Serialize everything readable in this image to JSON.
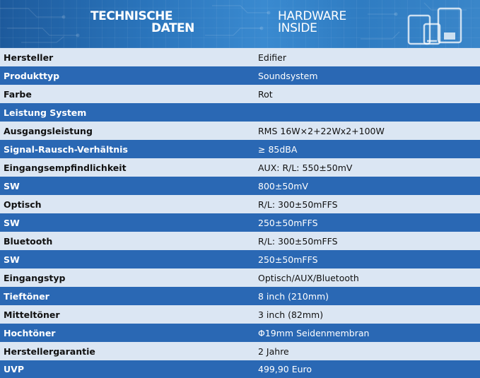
{
  "header": {
    "title_left_line1": "TECHNISCHE",
    "title_left_line2": "DATEN",
    "title_right_line1": "HARDWARE",
    "title_right_line2": "INSIDE",
    "icon": "devices-icon"
  },
  "colors": {
    "banner": "#2a74bb",
    "row_light": "#dbe6f3",
    "row_dark": "#2a68b4"
  },
  "specs": [
    {
      "label": "Hersteller",
      "value": "Edifier"
    },
    {
      "label": "Produkttyp",
      "value": "Soundsystem"
    },
    {
      "label": "Farbe",
      "value": "Rot"
    },
    {
      "label": "Leistung System",
      "value": ""
    },
    {
      "label": "Ausgangsleistung",
      "value": "RMS 16W×2+22Wx2+100W"
    },
    {
      "label": "Signal-Rausch-Verhältnis",
      "value": "≥ 85dBA"
    },
    {
      "label": "Eingangsempfindlichkeit",
      "value": "AUX: R/L: 550±50mV"
    },
    {
      "label": "SW",
      "value": "800±50mV"
    },
    {
      "label": "Optisch",
      "value": "R/L: 300±50mFFS"
    },
    {
      "label": "SW",
      "value": "250±50mFFS"
    },
    {
      "label": "Bluetooth",
      "value": "R/L: 300±50mFFS"
    },
    {
      "label": "SW",
      "value": "250±50mFFS"
    },
    {
      "label": "Eingangstyp",
      "value": "Optisch/AUX/Bluetooth"
    },
    {
      "label": "Tieftöner",
      "value": "8 inch (210mm)"
    },
    {
      "label": "Mitteltöner",
      "value": "3 inch (82mm)"
    },
    {
      "label": "Hochtöner",
      "value": "Φ19mm Seidenmembran"
    },
    {
      "label": "Herstellergarantie",
      "value": "2 Jahre"
    },
    {
      "label": "UVP",
      "value": "499,90 Euro"
    }
  ]
}
